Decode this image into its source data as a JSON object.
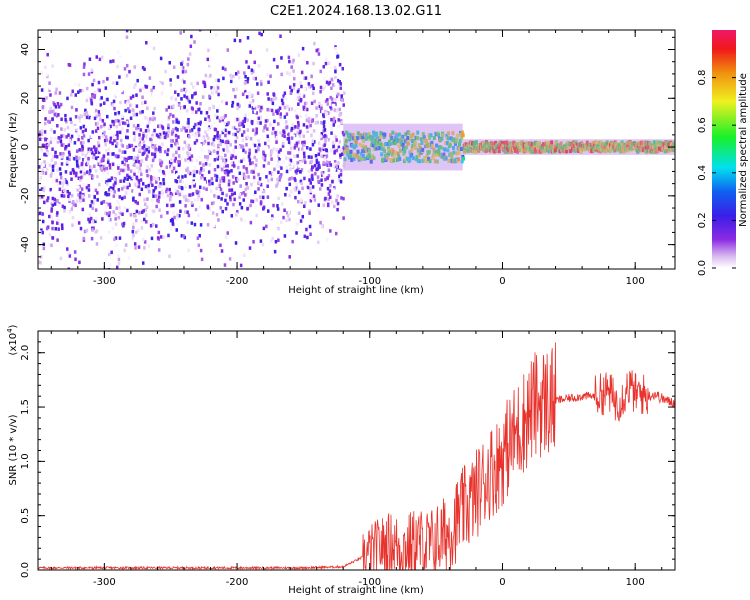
{
  "title": "C2E1.2024.168.13.02.G11",
  "colors": {
    "axis": "#000000",
    "snr_line": "#e8322c",
    "background": "#ffffff"
  },
  "chart_data": [
    {
      "type": "heatmap",
      "title": "C2E1.2024.168.13.02.G11",
      "xlabel": "Height of straight line (km)",
      "ylabel": "Frequency (Hz)",
      "xlim": [
        -350,
        130
      ],
      "ylim": [
        -50,
        48
      ],
      "x_ticks": [
        -300,
        -200,
        -100,
        0,
        100
      ],
      "x_tick_labels": [
        "-300",
        "-200",
        "-100",
        "0",
        "100"
      ],
      "y_ticks": [
        -40,
        -20,
        0,
        20,
        40
      ],
      "y_tick_labels": [
        "-40",
        "-20",
        "0",
        "20",
        "40"
      ],
      "colorbar": {
        "label": "Normalized spectral amplitude",
        "range": [
          0,
          1
        ],
        "ticks": [
          0.0,
          0.2,
          0.4,
          0.6,
          0.8
        ],
        "tick_labels": [
          "0.0",
          "0.2",
          "0.4",
          "0.6",
          "0.8"
        ],
        "colormap": "rainbow (white-purple-blue-cyan-green-yellow-red-magenta)"
      },
      "regions": [
        {
          "x_range": [
            -350,
            -120
          ],
          "freq_range": [
            -50,
            48
          ],
          "pattern": "scattered noise",
          "amplitude_range": [
            0.0,
            0.15
          ]
        },
        {
          "x_range": [
            -120,
            -30
          ],
          "freq_center": 0,
          "freq_halfwidth": 6,
          "pattern": "narrow signal band",
          "amplitude_range": [
            0.3,
            0.8
          ]
        },
        {
          "x_range": [
            -30,
            130
          ],
          "freq_center": 0,
          "freq_halfwidth": 2,
          "pattern": "narrow signal band",
          "amplitude_range": [
            0.5,
            0.95
          ]
        }
      ]
    },
    {
      "type": "line",
      "xlabel": "Height of straight line (km)",
      "ylabel": "SNR (10 * v/v)",
      "y_multiplier": "(x10^4)",
      "xlim": [
        -350,
        130
      ],
      "ylim": [
        0,
        2.2
      ],
      "x_ticks": [
        -300,
        -200,
        -100,
        0,
        100
      ],
      "x_tick_labels": [
        "-300",
        "-200",
        "-100",
        "0",
        "100"
      ],
      "y_ticks": [
        0.0,
        0.5,
        1.0,
        1.5,
        2.0
      ],
      "y_tick_labels": [
        "0.0",
        "0.5",
        "1.0",
        "1.5",
        "2.0"
      ],
      "series": [
        {
          "color": "#e8322c",
          "x": [
            -350,
            -300,
            -250,
            -200,
            -150,
            -120,
            -105,
            -95,
            -85,
            -75,
            -65,
            -55,
            -45,
            -40,
            -35,
            -30,
            -25,
            -20,
            -15,
            -10,
            -5,
            0,
            5,
            10,
            15,
            20,
            25,
            30,
            35,
            40,
            50,
            60,
            70,
            75,
            80,
            85,
            90,
            95,
            100,
            105,
            110,
            115,
            120,
            125,
            130
          ],
          "y": [
            0.02,
            0.02,
            0.02,
            0.02,
            0.02,
            0.03,
            0.12,
            0.2,
            0.25,
            0.2,
            0.25,
            0.22,
            0.3,
            0.35,
            0.45,
            0.55,
            0.6,
            0.7,
            0.8,
            0.9,
            0.95,
            1.05,
            1.15,
            1.25,
            1.35,
            1.45,
            1.52,
            1.55,
            1.55,
            1.56,
            1.58,
            1.6,
            1.6,
            1.62,
            1.65,
            1.55,
            1.58,
            1.7,
            1.62,
            1.62,
            1.6,
            1.62,
            1.58,
            1.55,
            1.55
          ]
        }
      ]
    }
  ]
}
